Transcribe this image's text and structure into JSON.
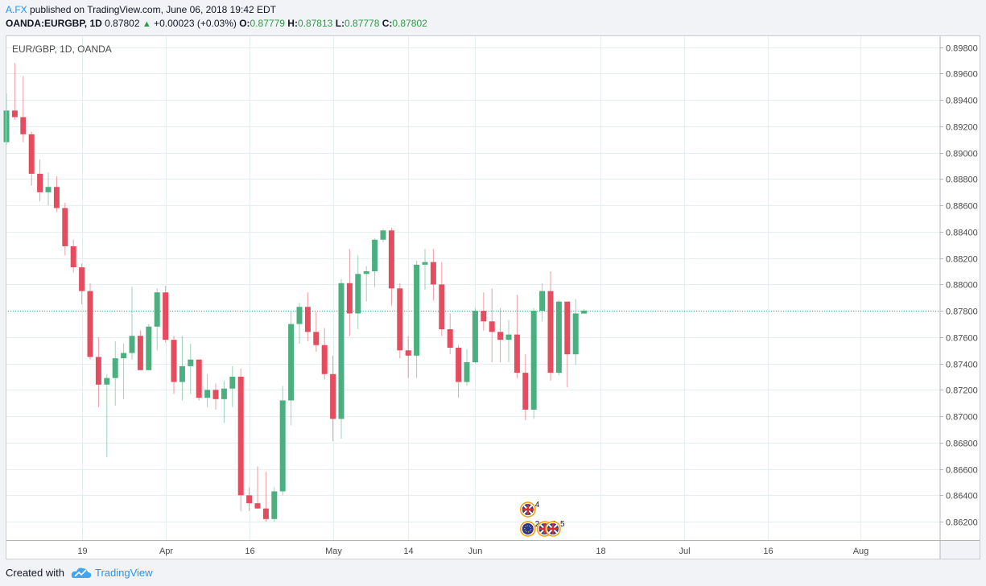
{
  "header": {
    "author": "A.FX",
    "published_text": "published on TradingView.com, June 06, 2018 19:42 EDT",
    "symbol": "OANDA:EURGBP, 1D",
    "last": "0.87802",
    "change": "+0.00023 (+0.03%)",
    "o_label": "O:",
    "o_value": "0.87779",
    "h_label": "H:",
    "h_value": "0.87813",
    "l_label": "L:",
    "l_value": "0.87778",
    "c_label": "C:",
    "c_value": "0.87802"
  },
  "footer": {
    "created_with": "Created with",
    "brand": "TradingView"
  },
  "colors": {
    "up": "#4caf80",
    "down": "#e54d5e",
    "grid": "#e6eef0",
    "price_line": "#4caf80",
    "accent": "#2196f3"
  },
  "chart_data": {
    "type": "candlestick",
    "title": "EUR/GBP, 1D, OANDA",
    "timeframe": "1D",
    "ylim": [
      0.8606,
      0.8989
    ],
    "y_ticks": [
      "0.89800",
      "0.89600",
      "0.89400",
      "0.89200",
      "0.89000",
      "0.88800",
      "0.88600",
      "0.88400",
      "0.88200",
      "0.88000",
      "0.87800",
      "0.87600",
      "0.87400",
      "0.87200",
      "0.87000",
      "0.86800",
      "0.86600",
      "0.86400",
      "0.86200"
    ],
    "x_ticks": [
      {
        "bar": 9,
        "label": "19"
      },
      {
        "bar": 19,
        "label": "Apr"
      },
      {
        "bar": 29,
        "label": "16"
      },
      {
        "bar": 39,
        "label": "May"
      },
      {
        "bar": 48,
        "label": "14"
      },
      {
        "bar": 56,
        "label": "Jun"
      },
      {
        "bar": 71,
        "label": "18"
      },
      {
        "bar": 81,
        "label": "Jul"
      },
      {
        "bar": 91,
        "label": "16"
      },
      {
        "bar": 102,
        "label": "Aug"
      }
    ],
    "current_price": 0.87802,
    "current_price_label": "0.87802",
    "candles": [
      {
        "o": 0.8908,
        "h": 0.8945,
        "l": 0.8906,
        "c": 0.8932
      },
      {
        "o": 0.8932,
        "h": 0.8968,
        "l": 0.8925,
        "c": 0.8927
      },
      {
        "o": 0.8927,
        "h": 0.8958,
        "l": 0.8908,
        "c": 0.8914
      },
      {
        "o": 0.8914,
        "h": 0.8916,
        "l": 0.8875,
        "c": 0.8884
      },
      {
        "o": 0.8884,
        "h": 0.8895,
        "l": 0.8863,
        "c": 0.887
      },
      {
        "o": 0.887,
        "h": 0.8885,
        "l": 0.886,
        "c": 0.8874
      },
      {
        "o": 0.8874,
        "h": 0.8882,
        "l": 0.8855,
        "c": 0.8858
      },
      {
        "o": 0.8858,
        "h": 0.8862,
        "l": 0.8822,
        "c": 0.8829
      },
      {
        "o": 0.8829,
        "h": 0.8834,
        "l": 0.8809,
        "c": 0.8813
      },
      {
        "o": 0.8813,
        "h": 0.8816,
        "l": 0.8785,
        "c": 0.8795
      },
      {
        "o": 0.8795,
        "h": 0.8801,
        "l": 0.8743,
        "c": 0.8745
      },
      {
        "o": 0.8745,
        "h": 0.876,
        "l": 0.8707,
        "c": 0.8724
      },
      {
        "o": 0.8724,
        "h": 0.8732,
        "l": 0.8669,
        "c": 0.8729
      },
      {
        "o": 0.8729,
        "h": 0.8757,
        "l": 0.8708,
        "c": 0.8744
      },
      {
        "o": 0.8744,
        "h": 0.8755,
        "l": 0.8713,
        "c": 0.8748
      },
      {
        "o": 0.8748,
        "h": 0.8798,
        "l": 0.8743,
        "c": 0.8761
      },
      {
        "o": 0.8761,
        "h": 0.8765,
        "l": 0.8735,
        "c": 0.8735
      },
      {
        "o": 0.8735,
        "h": 0.877,
        "l": 0.8735,
        "c": 0.8768
      },
      {
        "o": 0.8768,
        "h": 0.8797,
        "l": 0.875,
        "c": 0.8794
      },
      {
        "o": 0.8794,
        "h": 0.8799,
        "l": 0.8756,
        "c": 0.8758
      },
      {
        "o": 0.8758,
        "h": 0.8761,
        "l": 0.8717,
        "c": 0.8726
      },
      {
        "o": 0.8726,
        "h": 0.8761,
        "l": 0.8712,
        "c": 0.8738
      },
      {
        "o": 0.8738,
        "h": 0.8755,
        "l": 0.8717,
        "c": 0.8743
      },
      {
        "o": 0.8743,
        "h": 0.8743,
        "l": 0.8712,
        "c": 0.8714
      },
      {
        "o": 0.8714,
        "h": 0.8732,
        "l": 0.8707,
        "c": 0.872
      },
      {
        "o": 0.872,
        "h": 0.8725,
        "l": 0.8705,
        "c": 0.8713
      },
      {
        "o": 0.8713,
        "h": 0.8727,
        "l": 0.8695,
        "c": 0.8721
      },
      {
        "o": 0.8721,
        "h": 0.8738,
        "l": 0.8707,
        "c": 0.873
      },
      {
        "o": 0.873,
        "h": 0.8736,
        "l": 0.8628,
        "c": 0.864
      },
      {
        "o": 0.864,
        "h": 0.8646,
        "l": 0.8628,
        "c": 0.8634
      },
      {
        "o": 0.8634,
        "h": 0.8662,
        "l": 0.863,
        "c": 0.863
      },
      {
        "o": 0.863,
        "h": 0.8658,
        "l": 0.862,
        "c": 0.8622
      },
      {
        "o": 0.8622,
        "h": 0.8646,
        "l": 0.862,
        "c": 0.8643
      },
      {
        "o": 0.8643,
        "h": 0.8723,
        "l": 0.864,
        "c": 0.8712
      },
      {
        "o": 0.8712,
        "h": 0.878,
        "l": 0.8693,
        "c": 0.877
      },
      {
        "o": 0.877,
        "h": 0.8786,
        "l": 0.8755,
        "c": 0.8783
      },
      {
        "o": 0.8783,
        "h": 0.8794,
        "l": 0.8757,
        "c": 0.8764
      },
      {
        "o": 0.8764,
        "h": 0.8779,
        "l": 0.8749,
        "c": 0.8754
      },
      {
        "o": 0.8754,
        "h": 0.8767,
        "l": 0.8728,
        "c": 0.8732
      },
      {
        "o": 0.8732,
        "h": 0.8746,
        "l": 0.8681,
        "c": 0.8698
      },
      {
        "o": 0.8698,
        "h": 0.8804,
        "l": 0.8683,
        "c": 0.8801
      },
      {
        "o": 0.8801,
        "h": 0.8827,
        "l": 0.8761,
        "c": 0.8778
      },
      {
        "o": 0.8778,
        "h": 0.8822,
        "l": 0.8766,
        "c": 0.8808
      },
      {
        "o": 0.8808,
        "h": 0.8814,
        "l": 0.8787,
        "c": 0.881
      },
      {
        "o": 0.881,
        "h": 0.8835,
        "l": 0.8798,
        "c": 0.8834
      },
      {
        "o": 0.8834,
        "h": 0.8842,
        "l": 0.8832,
        "c": 0.8841
      },
      {
        "o": 0.8841,
        "h": 0.8843,
        "l": 0.8784,
        "c": 0.8797
      },
      {
        "o": 0.8797,
        "h": 0.8801,
        "l": 0.8744,
        "c": 0.875
      },
      {
        "o": 0.875,
        "h": 0.8761,
        "l": 0.8729,
        "c": 0.8746
      },
      {
        "o": 0.8746,
        "h": 0.8818,
        "l": 0.8729,
        "c": 0.8815
      },
      {
        "o": 0.8815,
        "h": 0.8827,
        "l": 0.8796,
        "c": 0.8817
      },
      {
        "o": 0.8817,
        "h": 0.8827,
        "l": 0.8788,
        "c": 0.88
      },
      {
        "o": 0.88,
        "h": 0.8817,
        "l": 0.8761,
        "c": 0.8766
      },
      {
        "o": 0.8766,
        "h": 0.8778,
        "l": 0.8747,
        "c": 0.8752
      },
      {
        "o": 0.8752,
        "h": 0.8754,
        "l": 0.8714,
        "c": 0.8726
      },
      {
        "o": 0.8726,
        "h": 0.8751,
        "l": 0.8723,
        "c": 0.8741
      },
      {
        "o": 0.8741,
        "h": 0.8782,
        "l": 0.874,
        "c": 0.878
      },
      {
        "o": 0.878,
        "h": 0.8794,
        "l": 0.8765,
        "c": 0.8772
      },
      {
        "o": 0.8772,
        "h": 0.8797,
        "l": 0.8741,
        "c": 0.8764
      },
      {
        "o": 0.8764,
        "h": 0.8782,
        "l": 0.8741,
        "c": 0.8758
      },
      {
        "o": 0.8758,
        "h": 0.8773,
        "l": 0.8741,
        "c": 0.8762
      },
      {
        "o": 0.8762,
        "h": 0.8792,
        "l": 0.8729,
        "c": 0.8733
      },
      {
        "o": 0.8733,
        "h": 0.8747,
        "l": 0.8697,
        "c": 0.8705
      },
      {
        "o": 0.8705,
        "h": 0.8782,
        "l": 0.8698,
        "c": 0.878
      },
      {
        "o": 0.878,
        "h": 0.8801,
        "l": 0.8772,
        "c": 0.8795
      },
      {
        "o": 0.8795,
        "h": 0.881,
        "l": 0.8727,
        "c": 0.8733
      },
      {
        "o": 0.8733,
        "h": 0.8788,
        "l": 0.8731,
        "c": 0.8787
      },
      {
        "o": 0.8787,
        "h": 0.8787,
        "l": 0.8722,
        "c": 0.8747
      },
      {
        "o": 0.8747,
        "h": 0.8789,
        "l": 0.8739,
        "c": 0.8778
      },
      {
        "o": 0.87779,
        "h": 0.87813,
        "l": 0.87778,
        "c": 0.87802
      }
    ],
    "events": [
      {
        "bar": 62,
        "row": 0,
        "kind": "uk-flag",
        "count": "4"
      },
      {
        "bar": 62,
        "row": 1,
        "kind": "eu-flag",
        "count": "2"
      },
      {
        "bar": 64,
        "row": 1,
        "kind": "uk-flag",
        "count": "2"
      },
      {
        "bar": 65,
        "row": 1,
        "kind": "uk-flag",
        "count": "5"
      }
    ]
  }
}
